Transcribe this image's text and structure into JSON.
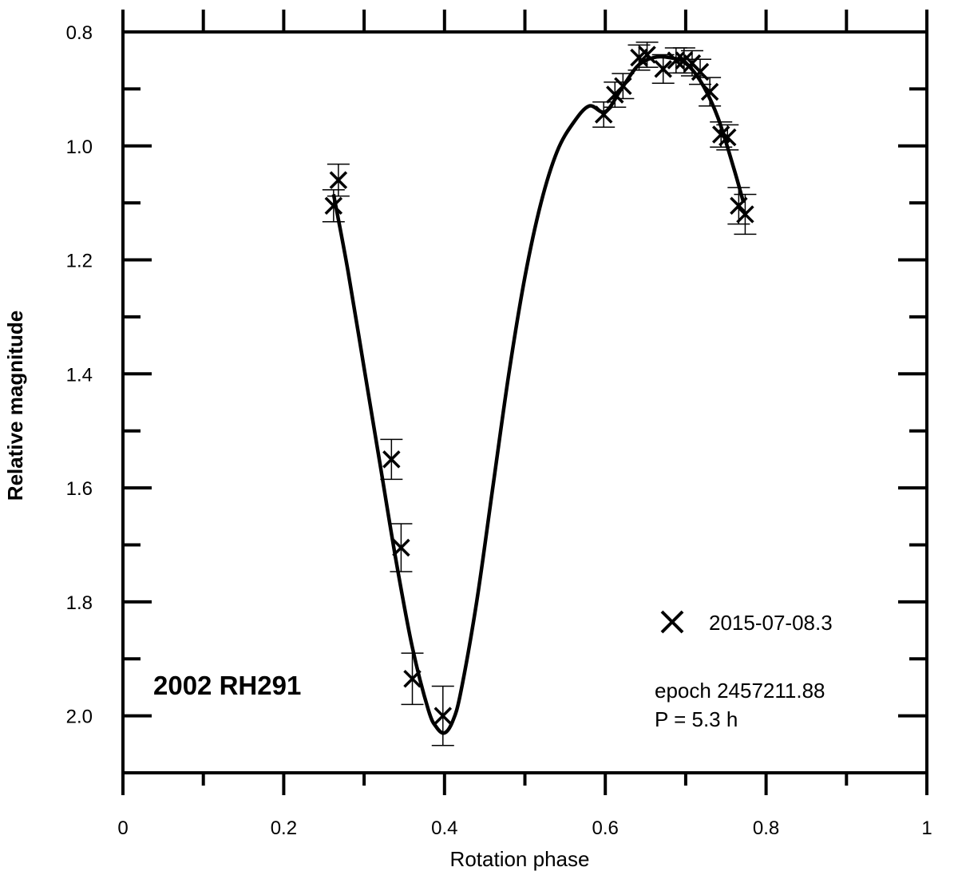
{
  "chart_data": {
    "type": "scatter",
    "title": "",
    "object_label": "2002 RH291",
    "xlabel": "Rotation phase",
    "ylabel": "Relative magnitude",
    "xlim": [
      0,
      1
    ],
    "ylim": [
      2.1,
      0.8
    ],
    "y_inverted": true,
    "x_ticks": [
      "0",
      "0.2",
      "0.4",
      "0.6",
      "0.8",
      "1"
    ],
    "y_ticks": [
      "0.8",
      "1.0",
      "1.2",
      "1.4",
      "1.6",
      "1.8",
      "2.0"
    ],
    "grid": false,
    "legend_position": "bottom-right",
    "legend_marker": "×",
    "series": [
      {
        "name": "2015-07-08.3",
        "marker": "x",
        "points": [
          {
            "x": 0.262,
            "y": 1.105,
            "err": 0.028
          },
          {
            "x": 0.268,
            "y": 1.06,
            "err": 0.028
          },
          {
            "x": 0.334,
            "y": 1.55,
            "err": 0.035
          },
          {
            "x": 0.346,
            "y": 1.705,
            "err": 0.042
          },
          {
            "x": 0.36,
            "y": 1.935,
            "err": 0.045
          },
          {
            "x": 0.398,
            "y": 2.0,
            "err": 0.052
          },
          {
            "x": 0.598,
            "y": 0.945,
            "err": 0.022
          },
          {
            "x": 0.612,
            "y": 0.91,
            "err": 0.022
          },
          {
            "x": 0.622,
            "y": 0.895,
            "err": 0.022
          },
          {
            "x": 0.642,
            "y": 0.845,
            "err": 0.022
          },
          {
            "x": 0.652,
            "y": 0.84,
            "err": 0.022
          },
          {
            "x": 0.672,
            "y": 0.865,
            "err": 0.025
          },
          {
            "x": 0.688,
            "y": 0.85,
            "err": 0.022
          },
          {
            "x": 0.698,
            "y": 0.85,
            "err": 0.022
          },
          {
            "x": 0.708,
            "y": 0.855,
            "err": 0.022
          },
          {
            "x": 0.718,
            "y": 0.87,
            "err": 0.022
          },
          {
            "x": 0.73,
            "y": 0.905,
            "err": 0.025
          },
          {
            "x": 0.744,
            "y": 0.98,
            "err": 0.022
          },
          {
            "x": 0.752,
            "y": 0.985,
            "err": 0.022
          },
          {
            "x": 0.766,
            "y": 1.105,
            "err": 0.032
          },
          {
            "x": 0.774,
            "y": 1.12,
            "err": 0.035
          }
        ]
      }
    ],
    "fit_curve": {
      "x": [
        0.262,
        0.28,
        0.3,
        0.32,
        0.34,
        0.36,
        0.38,
        0.39,
        0.4,
        0.41,
        0.42,
        0.44,
        0.46,
        0.48,
        0.5,
        0.52,
        0.54,
        0.56,
        0.58,
        0.6,
        0.62,
        0.64,
        0.66,
        0.68,
        0.7,
        0.72,
        0.74,
        0.76,
        0.772
      ],
      "y": [
        1.085,
        1.22,
        1.39,
        1.56,
        1.73,
        1.88,
        1.99,
        2.02,
        2.03,
        2.01,
        1.96,
        1.8,
        1.6,
        1.4,
        1.23,
        1.1,
        1.01,
        0.96,
        0.93,
        0.94,
        0.9,
        0.86,
        0.845,
        0.845,
        0.855,
        0.89,
        0.95,
        1.04,
        1.1
      ]
    },
    "annotations": {
      "epoch": "epoch 2457211.88",
      "period": "P = 5.3 h"
    }
  }
}
